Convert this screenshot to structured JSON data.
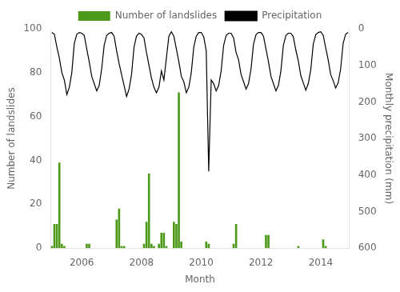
{
  "chart_data": {
    "type": "bar",
    "x_label": "Month",
    "y_label": "Number of landslides",
    "y2_label": "Monthly precipitation (mm)",
    "categories": [
      null,
      null,
      null,
      null,
      null,
      null,
      null,
      null,
      null,
      null,
      null,
      null,
      "2006",
      null,
      null,
      null,
      null,
      null,
      null,
      null,
      null,
      null,
      null,
      null,
      null,
      null,
      null,
      null,
      null,
      null,
      null,
      null,
      null,
      null,
      null,
      null,
      "2008",
      null,
      null,
      null,
      null,
      null,
      null,
      null,
      null,
      null,
      null,
      null,
      null,
      null,
      null,
      null,
      null,
      null,
      null,
      null,
      null,
      null,
      null,
      null,
      "2010",
      null,
      null,
      null,
      null,
      null,
      null,
      null,
      null,
      null,
      null,
      null,
      null,
      null,
      null,
      null,
      null,
      null,
      null,
      null,
      null,
      null,
      null,
      null,
      "2012",
      null,
      null,
      null,
      null,
      null,
      null,
      null,
      null,
      null,
      null,
      null,
      null,
      null,
      null,
      null,
      null,
      null,
      null,
      null,
      null,
      null,
      null,
      null,
      "2014",
      null,
      null,
      null,
      null,
      null,
      null,
      null,
      null,
      null,
      null,
      null
    ],
    "series": [
      {
        "name": "Number of landslides",
        "type": "bar",
        "color": "#4d9a1a",
        "values": [
          1,
          11,
          11,
          39,
          2,
          1,
          0,
          0,
          0,
          0,
          0,
          0,
          0,
          0,
          2,
          2,
          0,
          0,
          0,
          0,
          0,
          0,
          0,
          0,
          0,
          0,
          13,
          18,
          1,
          1,
          0,
          0,
          0,
          0,
          0,
          0,
          0,
          2,
          12,
          34,
          2,
          1,
          0,
          2,
          7,
          7,
          1,
          0,
          0,
          12,
          11,
          71,
          3,
          0,
          0,
          0,
          0,
          0,
          0,
          0,
          0,
          0,
          3,
          2,
          0,
          0,
          0,
          0,
          0,
          0,
          0,
          0,
          0,
          2,
          11,
          0,
          0,
          0,
          0,
          0,
          0,
          0,
          0,
          0,
          0,
          0,
          6,
          6,
          0,
          0,
          0,
          0,
          0,
          0,
          0,
          0,
          0,
          0,
          0,
          1,
          0,
          0,
          0,
          0,
          0,
          0,
          0,
          0,
          0,
          4,
          1,
          0,
          0,
          0,
          0,
          0,
          0,
          0,
          0,
          0
        ]
      },
      {
        "name": "Precipitation",
        "type": "line",
        "color": "#000000",
        "axis": "y2",
        "values": [
          10,
          15,
          50,
          80,
          120,
          140,
          180,
          160,
          120,
          40,
          15,
          10,
          12,
          18,
          55,
          90,
          130,
          150,
          170,
          155,
          110,
          45,
          18,
          12,
          10,
          20,
          60,
          95,
          125,
          155,
          185,
          165,
          125,
          50,
          20,
          12,
          15,
          25,
          65,
          100,
          135,
          160,
          175,
          160,
          115,
          140,
          80,
          20,
          8,
          20,
          55,
          90,
          130,
          145,
          175,
          160,
          120,
          50,
          20,
          10,
          10,
          22,
          60,
          390,
          140,
          150,
          170,
          155,
          115,
          45,
          18,
          12,
          12,
          25,
          65,
          85,
          125,
          145,
          165,
          150,
          110,
          42,
          16,
          10,
          10,
          20,
          55,
          90,
          130,
          150,
          170,
          155,
          115,
          45,
          18,
          12,
          12,
          22,
          58,
          88,
          128,
          148,
          168,
          150,
          112,
          42,
          16,
          10,
          8,
          18,
          52,
          85,
          125,
          142,
          162,
          148,
          110,
          40,
          15,
          10
        ]
      }
    ],
    "ylim": [
      0,
      100
    ],
    "yticks": [
      0,
      20,
      40,
      60,
      80,
      100
    ],
    "y2lim": [
      600,
      0
    ],
    "y2ticks": [
      0,
      100,
      200,
      300,
      400,
      500,
      600
    ],
    "grid": false,
    "legend": "top"
  }
}
